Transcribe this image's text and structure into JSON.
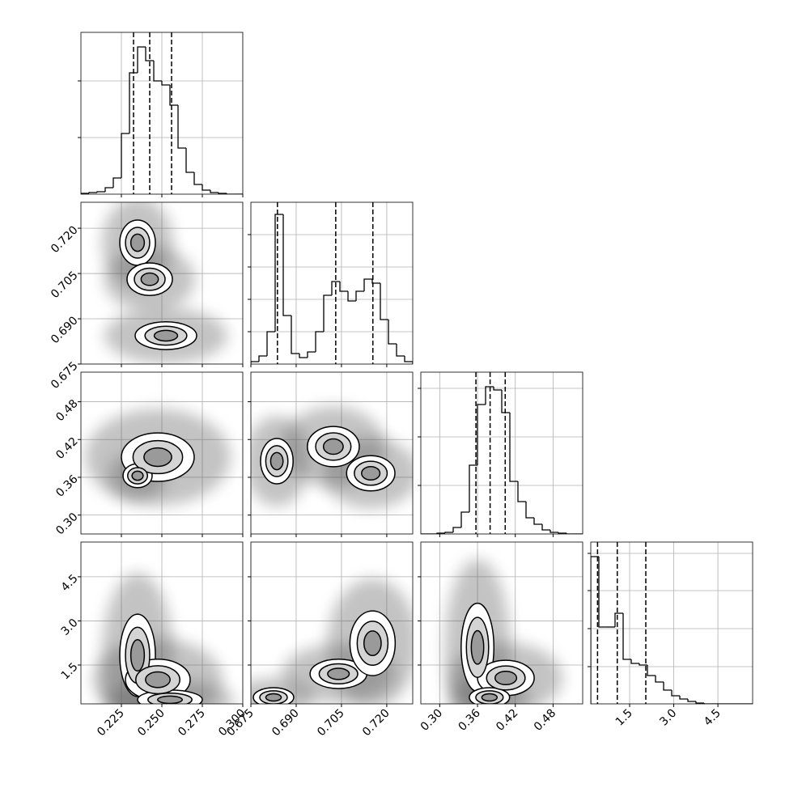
{
  "chart_data": {
    "type": "corner",
    "grid": true,
    "variables": [
      {
        "xlim": [
          0.2,
          0.3
        ],
        "ticks": [
          0.225,
          {
            "value": 0.25,
            "label": "0.250"
          },
          0.275,
          {
            "value": 0.3,
            "label": "0.300"
          }
        ],
        "quantiles": [
          0.2325,
          0.2425,
          0.256
        ],
        "hist": {
          "bins": [
            0.2,
            0.205,
            0.21,
            0.215,
            0.22,
            0.225,
            0.23,
            0.235,
            0.24,
            0.245,
            0.25,
            0.255,
            0.26,
            0.265,
            0.27,
            0.275,
            0.28,
            0.285,
            0.29,
            0.295,
            0.3
          ],
          "counts": [
            1,
            2,
            3,
            8,
            20,
            75,
            150,
            182,
            165,
            140,
            135,
            110,
            57,
            27,
            12,
            5,
            2,
            1,
            0,
            0
          ],
          "ylim": [
            0,
            200
          ],
          "yticks": [
            70,
            140
          ]
        },
        "contours": []
      },
      {
        "xlim": [
          0.675,
          0.7286
        ],
        "ticks": [
          0.675,
          {
            "value": 0.69,
            "label": "0.690"
          },
          0.705,
          {
            "value": 0.72,
            "label": "0.720"
          }
        ],
        "quantiles": [
          0.6838,
          0.7031,
          0.7154
        ],
        "hist": {
          "bins": [
            0.675,
            0.67768,
            0.68036,
            0.68304,
            0.68572,
            0.6884,
            0.69108,
            0.69376,
            0.69644,
            0.69912,
            0.7018,
            0.70448,
            0.70716,
            0.70984,
            0.71252,
            0.7152,
            0.71788,
            0.72056,
            0.72324,
            0.72592,
            0.7286
          ],
          "counts": [
            3,
            10,
            40,
            185,
            60,
            13,
            8,
            15,
            40,
            85,
            102,
            90,
            78,
            90,
            105,
            100,
            55,
            25,
            10,
            3
          ],
          "ylim": [
            0,
            200
          ],
          "yticks": [
            40,
            80,
            120,
            160
          ]
        },
        "contours": [
          [
            {
              "x": 0.235,
              "y": 0.7152,
              "rx": 0.011,
              "ry": 0.0075
            },
            {
              "x": 0.2425,
              "y": 0.7031,
              "rx": 0.014,
              "ry": 0.0054
            },
            {
              "x": 0.2525,
              "y": 0.6844,
              "rx": 0.019,
              "ry": 0.0046
            }
          ]
        ]
      },
      {
        "xlim": [
          0.27,
          0.527
        ],
        "ticks": [
          {
            "value": 0.3,
            "label": "0.30"
          },
          0.36,
          0.42,
          0.48
        ],
        "quantiles": [
          0.3575,
          0.38,
          0.404
        ],
        "hist": {
          "bins": [
            0.27,
            0.28285,
            0.2957,
            0.30855,
            0.3214,
            0.33425,
            0.3471,
            0.35995,
            0.3728,
            0.38565,
            0.3985,
            0.41135,
            0.4242,
            0.43705,
            0.4499,
            0.46275,
            0.4756,
            0.48845,
            0.5013,
            0.51415,
            0.527
          ],
          "counts": [
            0,
            0,
            1,
            2,
            8,
            27,
            85,
            160,
            182,
            178,
            150,
            65,
            40,
            20,
            12,
            5,
            2,
            1,
            0,
            0
          ],
          "ylim": [
            0,
            200
          ],
          "yticks": [
            60,
            120,
            180
          ]
        },
        "contours": [
          [
            {
              "x": 0.2475,
              "y": 0.392,
              "rx": 0.0225,
              "ry": 0.0385
            },
            {
              "x": 0.235,
              "y": 0.3625,
              "rx": 0.009,
              "ry": 0.019
            }
          ],
          [
            {
              "x": 0.6836,
              "y": 0.3857,
              "rx": 0.0054,
              "ry": 0.036
            },
            {
              "x": 0.7023,
              "y": 0.4088,
              "rx": 0.0086,
              "ry": 0.032
            },
            {
              "x": 0.7147,
              "y": 0.3664,
              "rx": 0.008,
              "ry": 0.028
            }
          ]
        ]
      },
      {
        "xlim": [
          0.18,
          5.68
        ],
        "ticks": [
          1.5,
          {
            "value": 3,
            "label": "3.0"
          },
          4.5
        ],
        "quantiles": [
          0.41,
          1.08,
          2.05
        ],
        "hist": {
          "bins": [
            0.18,
            0.455,
            0.73,
            1.005,
            1.28,
            1.555,
            1.83,
            2.105,
            2.38,
            2.655,
            2.93,
            3.205,
            3.48,
            3.755,
            4.03,
            4.305,
            4.58,
            4.855,
            5.13,
            5.405,
            5.68
          ],
          "counts": [
            182,
            95,
            95,
            112,
            55,
            50,
            48,
            35,
            27,
            17,
            10,
            6,
            3,
            1,
            0,
            0,
            0,
            0,
            0,
            0
          ],
          "ylim": [
            0,
            200
          ],
          "yticks": [
            46,
            93,
            140,
            186
          ]
        },
        "contours": [
          [
            {
              "x": 0.235,
              "y": 1.83,
              "rx": 0.011,
              "ry": 1.4
            },
            {
              "x": 0.2475,
              "y": 1.0,
              "rx": 0.02,
              "ry": 0.7
            },
            {
              "x": 0.255,
              "y": 0.32,
              "rx": 0.02,
              "ry": 0.33
            }
          ],
          [
            {
              "x": 0.6825,
              "y": 0.4,
              "rx": 0.0067,
              "ry": 0.33
            },
            {
              "x": 0.704,
              "y": 1.2,
              "rx": 0.0094,
              "ry": 0.5
            },
            {
              "x": 0.7153,
              "y": 2.24,
              "rx": 0.0075,
              "ry": 1.1
            }
          ],
          [
            {
              "x": 0.36,
              "y": 2.1,
              "rx": 0.026,
              "ry": 1.5
            },
            {
              "x": 0.405,
              "y": 1.06,
              "rx": 0.045,
              "ry": 0.6
            },
            {
              "x": 0.379,
              "y": 0.4,
              "rx": 0.032,
              "ry": 0.33
            }
          ]
        ]
      }
    ]
  }
}
